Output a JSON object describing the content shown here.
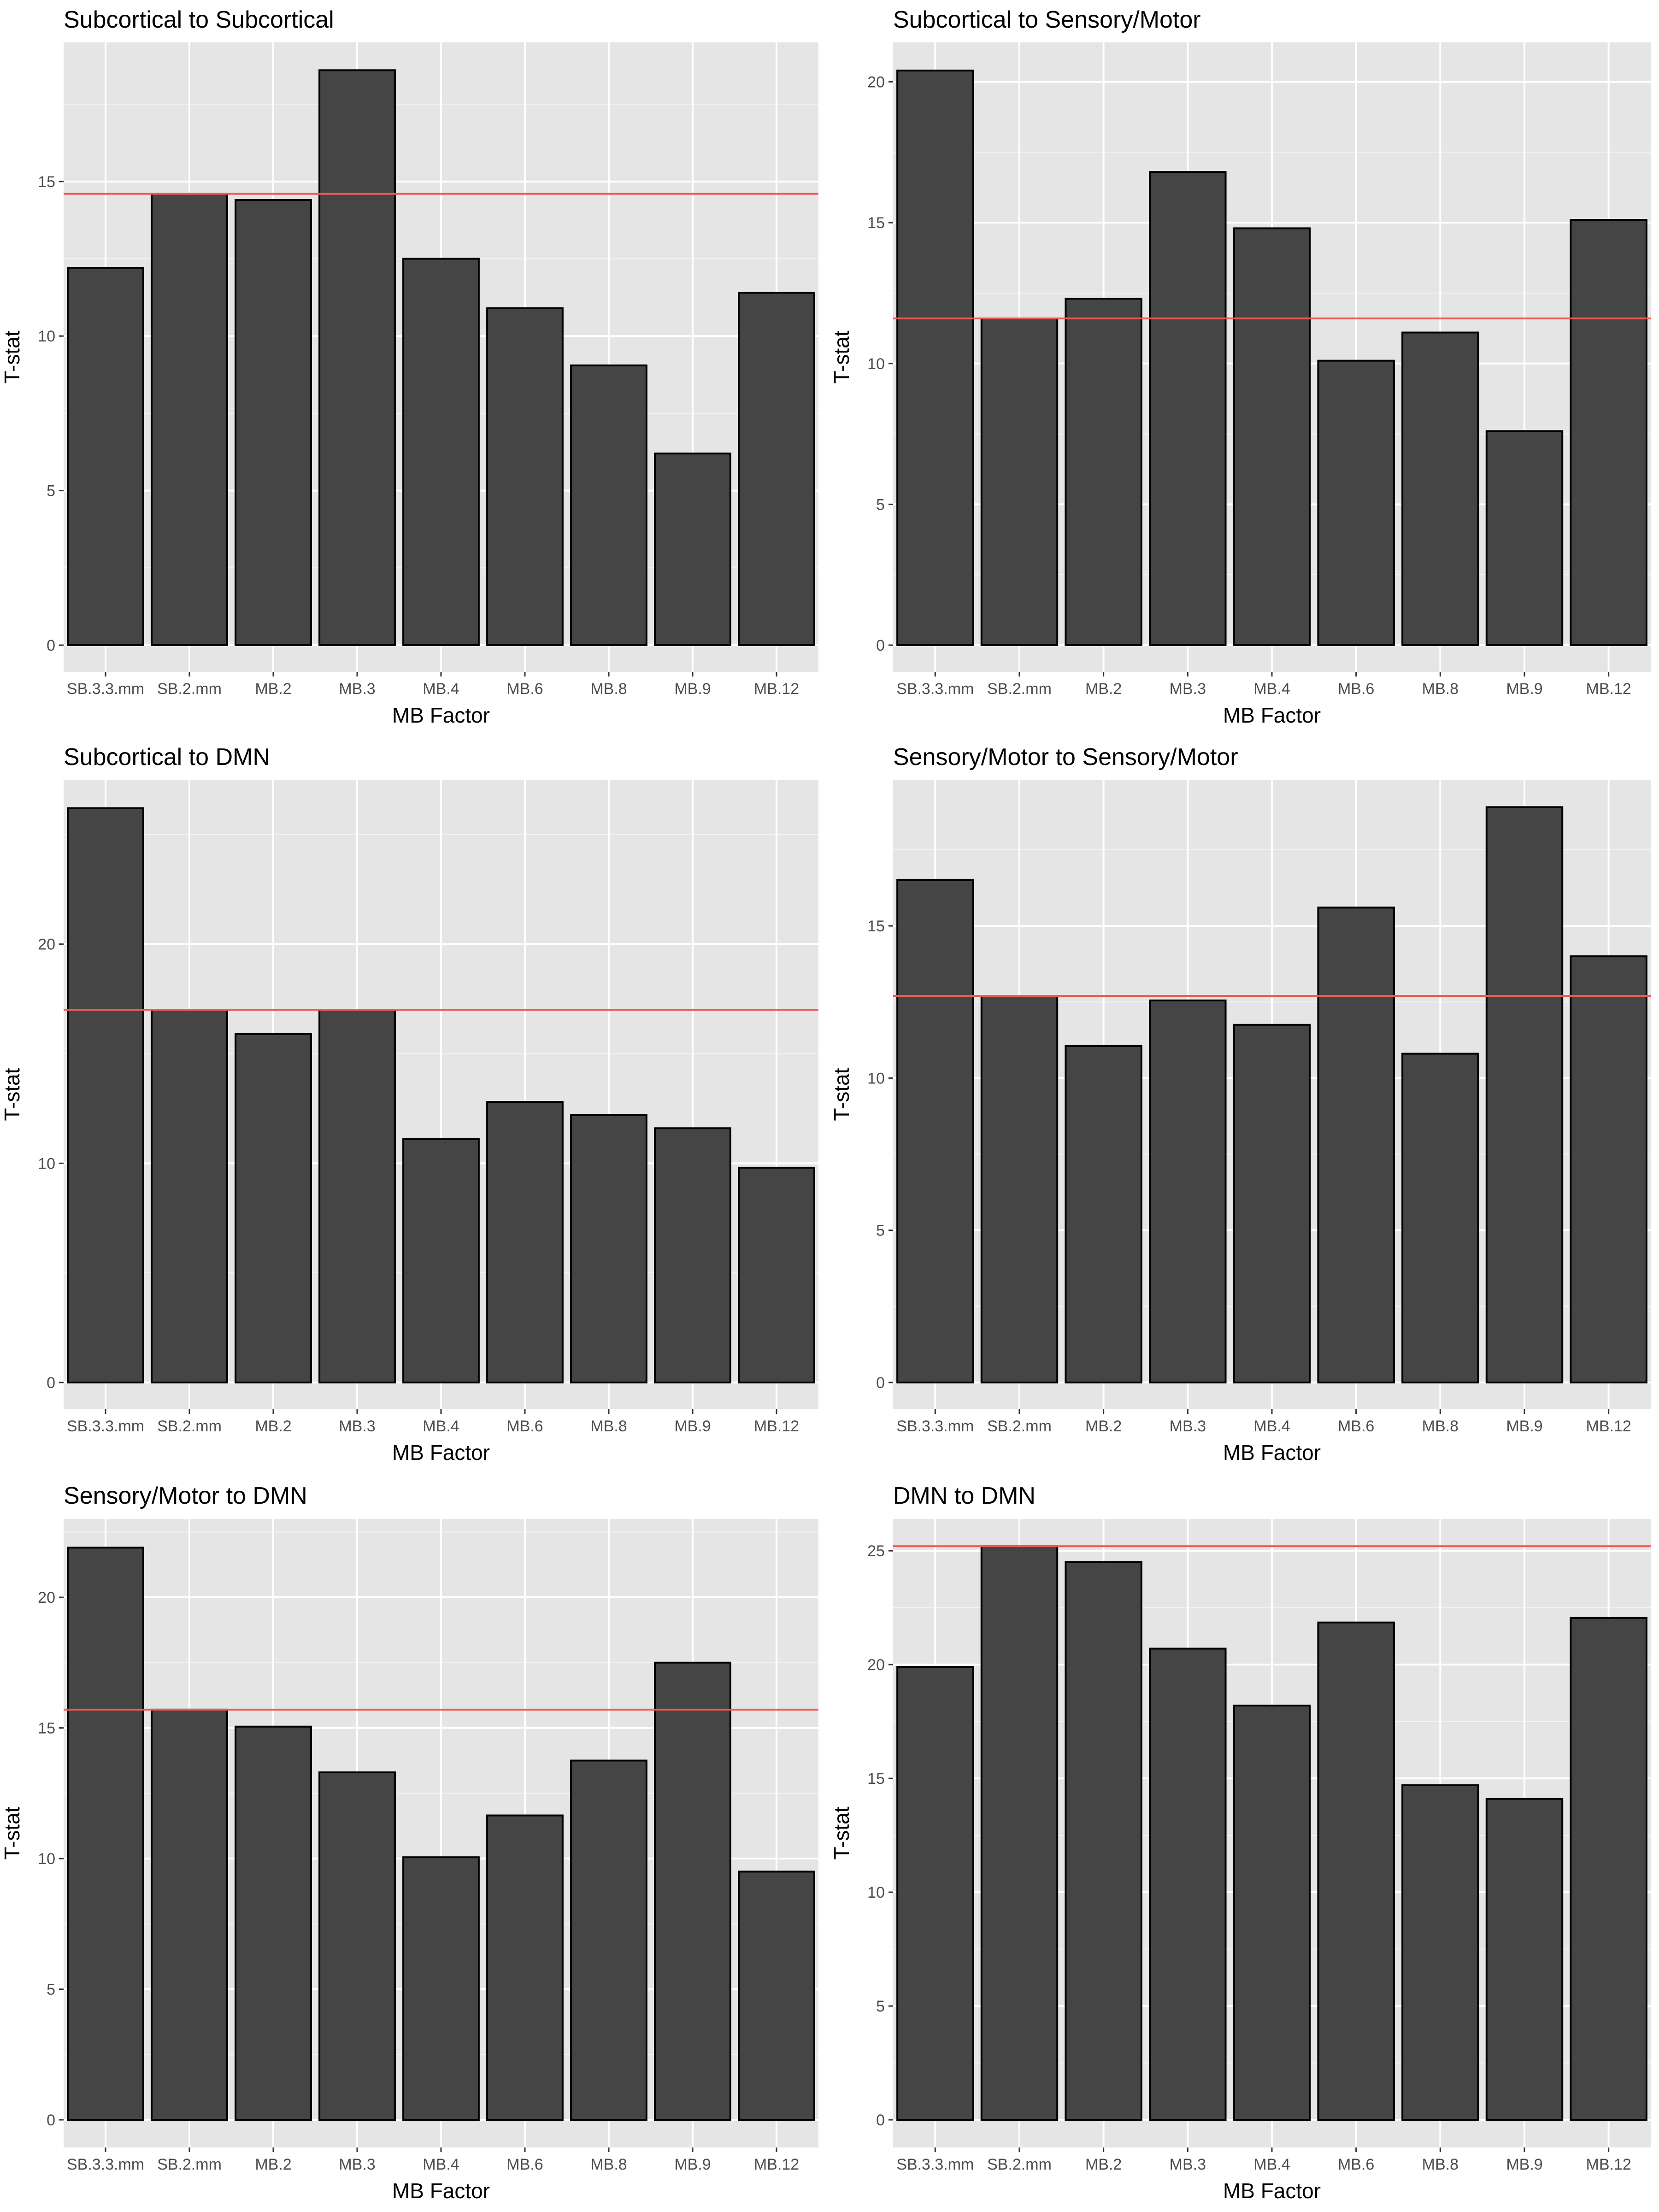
{
  "chart_data": [
    {
      "type": "bar",
      "title": "Subcortical to Subcortical",
      "xlabel": "MB Factor",
      "ylabel": "T-stat",
      "categories": [
        "SB.3.3.mm",
        "SB.2.mm",
        "MB.2",
        "MB.3",
        "MB.4",
        "MB.6",
        "MB.8",
        "MB.9",
        "MB.12"
      ],
      "values": [
        12.2,
        14.6,
        14.4,
        18.6,
        12.5,
        10.9,
        9.05,
        6.2,
        11.4
      ],
      "reference_line": 14.6,
      "yticks": [
        0,
        5,
        10,
        15
      ],
      "ylim": [
        0,
        19.5
      ]
    },
    {
      "type": "bar",
      "title": "Subcortical to Sensory/Motor",
      "xlabel": "MB Factor",
      "ylabel": "T-stat",
      "categories": [
        "SB.3.3.mm",
        "SB.2.mm",
        "MB.2",
        "MB.3",
        "MB.4",
        "MB.6",
        "MB.8",
        "MB.9",
        "MB.12"
      ],
      "values": [
        20.4,
        11.6,
        12.3,
        16.8,
        14.8,
        10.1,
        11.1,
        7.6,
        15.1
      ],
      "reference_line": 11.6,
      "yticks": [
        0,
        5,
        10,
        15,
        20
      ],
      "ylim": [
        0,
        21.4
      ]
    },
    {
      "type": "bar",
      "title": "Subcortical to DMN",
      "xlabel": "MB Factor",
      "ylabel": "T-stat",
      "categories": [
        "SB.3.3.mm",
        "SB.2.mm",
        "MB.2",
        "MB.3",
        "MB.4",
        "MB.6",
        "MB.8",
        "MB.9",
        "MB.12"
      ],
      "values": [
        26.2,
        17.0,
        15.9,
        17.0,
        11.1,
        12.8,
        12.2,
        11.6,
        9.8
      ],
      "reference_line": 17.0,
      "yticks": [
        0,
        10,
        20
      ],
      "ylim": [
        0,
        27.5
      ]
    },
    {
      "type": "bar",
      "title": "Sensory/Motor to Sensory/Motor",
      "xlabel": "MB Factor",
      "ylabel": "T-stat",
      "categories": [
        "SB.3.3.mm",
        "SB.2.mm",
        "MB.2",
        "MB.3",
        "MB.4",
        "MB.6",
        "MB.8",
        "MB.9",
        "MB.12"
      ],
      "values": [
        16.5,
        12.7,
        11.05,
        12.55,
        11.75,
        15.6,
        10.8,
        18.9,
        14.0
      ],
      "reference_line": 12.7,
      "yticks": [
        0,
        5,
        10,
        15
      ],
      "ylim": [
        0,
        19.8
      ]
    },
    {
      "type": "bar",
      "title": "Sensory/Motor to DMN",
      "xlabel": "MB Factor",
      "ylabel": "T-stat",
      "categories": [
        "SB.3.3.mm",
        "SB.2.mm",
        "MB.2",
        "MB.3",
        "MB.4",
        "MB.6",
        "MB.8",
        "MB.9",
        "MB.12"
      ],
      "values": [
        21.9,
        15.7,
        15.05,
        13.3,
        10.05,
        11.65,
        13.75,
        17.5,
        9.5
      ],
      "reference_line": 15.7,
      "yticks": [
        0,
        5,
        10,
        15,
        20
      ],
      "ylim": [
        0,
        23.0
      ]
    },
    {
      "type": "bar",
      "title": "DMN to DMN",
      "xlabel": "MB Factor",
      "ylabel": "T-stat",
      "categories": [
        "SB.3.3.mm",
        "SB.2.mm",
        "MB.2",
        "MB.3",
        "MB.4",
        "MB.6",
        "MB.8",
        "MB.9",
        "MB.12"
      ],
      "values": [
        19.9,
        25.2,
        24.5,
        20.7,
        18.2,
        21.85,
        14.7,
        14.1,
        22.05
      ],
      "reference_line": 25.2,
      "yticks": [
        0,
        5,
        10,
        15,
        20,
        25
      ],
      "ylim": [
        0,
        26.4
      ]
    }
  ],
  "colors": {
    "panel_background": "#e5e5e5",
    "grid": "#ffffff",
    "bar_fill": "#454545",
    "bar_outline": "#000000",
    "reference_line": "#f05a50"
  }
}
